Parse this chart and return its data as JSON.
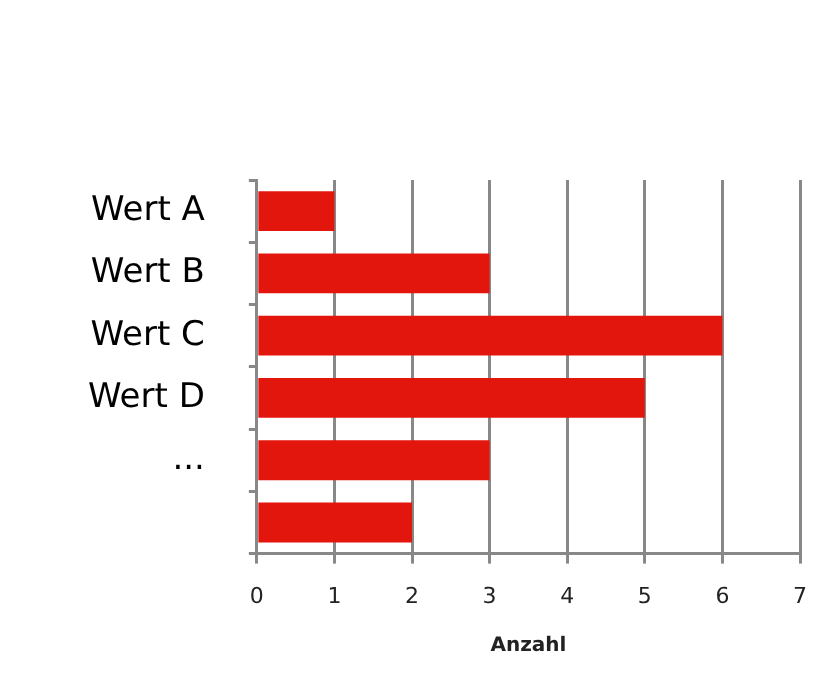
{
  "chart_data": {
    "type": "bar",
    "orientation": "horizontal",
    "xlabel": "Anzahl",
    "categories": [
      "Wert A",
      "Wert B",
      "Wert C",
      "Wert D",
      "...",
      null
    ],
    "values": [
      1,
      3,
      6,
      5,
      3,
      2
    ],
    "color": "#e3160d",
    "xlim": [
      0,
      7
    ],
    "xticks": [
      0,
      1,
      2,
      3,
      4,
      5,
      6,
      7
    ],
    "grid": "x",
    "legend": false
  }
}
